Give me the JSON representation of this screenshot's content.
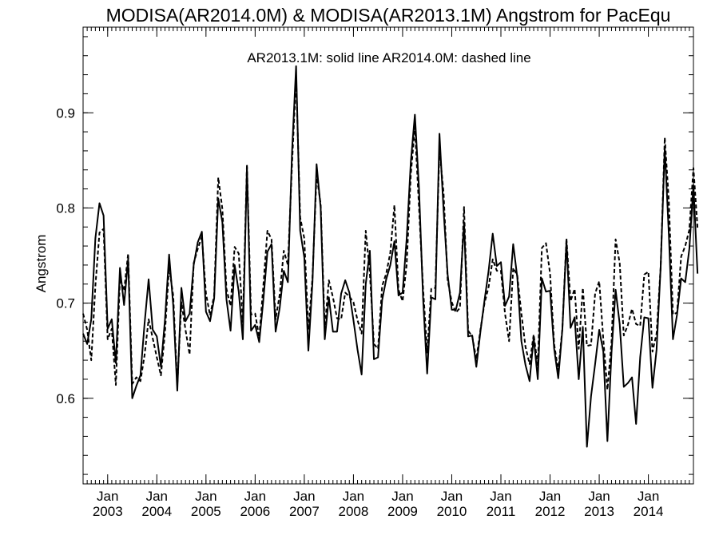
{
  "chart_data": {
    "type": "line",
    "title": "MODISA(AR2014.0M) & MODISA(AR2013.1M)  Angstrom for PacEqu",
    "annotation": "AR2013.1M: solid line   AR2014.0M: dashed line",
    "xlabel": "",
    "ylabel": "Angstrom",
    "xlim": [
      "2002-07",
      "2014-12"
    ],
    "ylim": [
      0.51,
      0.99
    ],
    "y_ticks": [
      0.6,
      0.7,
      0.8,
      0.9
    ],
    "y_tick_labels": [
      "0.6",
      "0.7",
      "0.8",
      "0.9"
    ],
    "x_ticks": [
      "2003-01",
      "2004-01",
      "2005-01",
      "2006-01",
      "2007-01",
      "2008-01",
      "2009-01",
      "2010-01",
      "2011-01",
      "2012-01",
      "2013-01",
      "2014-01"
    ],
    "x_tick_labels": [
      {
        "month": "Jan",
        "year": "2003"
      },
      {
        "month": "Jan",
        "year": "2004"
      },
      {
        "month": "Jan",
        "year": "2005"
      },
      {
        "month": "Jan",
        "year": "2006"
      },
      {
        "month": "Jan",
        "year": "2007"
      },
      {
        "month": "Jan",
        "year": "2008"
      },
      {
        "month": "Jan",
        "year": "2009"
      },
      {
        "month": "Jan",
        "year": "2010"
      },
      {
        "month": "Jan",
        "year": "2011"
      },
      {
        "month": "Jan",
        "year": "2012"
      },
      {
        "month": "Jan",
        "year": "2013"
      },
      {
        "month": "Jan",
        "year": "2014"
      }
    ],
    "x_start": "2002-07",
    "x_step": "1 month",
    "series": [
      {
        "name": "AR2013.1M",
        "style": "solid",
        "color": "#000000",
        "values": [
          0.668,
          0.657,
          0.683,
          0.768,
          0.805,
          0.792,
          0.673,
          0.683,
          0.637,
          0.737,
          0.698,
          0.746,
          0.6,
          0.613,
          0.624,
          0.678,
          0.725,
          0.672,
          0.665,
          0.633,
          0.683,
          0.751,
          0.698,
          0.608,
          0.716,
          0.681,
          0.689,
          0.74,
          0.764,
          0.775,
          0.691,
          0.681,
          0.705,
          0.81,
          0.785,
          0.704,
          0.671,
          0.74,
          0.712,
          0.662,
          0.843,
          0.671,
          0.677,
          0.659,
          0.703,
          0.754,
          0.762,
          0.67,
          0.695,
          0.734,
          0.722,
          0.858,
          0.949,
          0.776,
          0.748,
          0.65,
          0.722,
          0.846,
          0.8,
          0.662,
          0.706,
          0.67,
          0.67,
          0.71,
          0.724,
          0.711,
          0.682,
          0.651,
          0.625,
          0.72,
          0.755,
          0.641,
          0.643,
          0.703,
          0.725,
          0.74,
          0.765,
          0.708,
          0.711,
          0.768,
          0.848,
          0.898,
          0.821,
          0.705,
          0.626,
          0.706,
          0.704,
          0.878,
          0.798,
          0.73,
          0.693,
          0.693,
          0.711,
          0.785,
          0.665,
          0.666,
          0.633,
          0.67,
          0.703,
          0.734,
          0.773,
          0.739,
          0.743,
          0.697,
          0.707,
          0.762,
          0.727,
          0.66,
          0.635,
          0.618,
          0.664,
          0.62,
          0.726,
          0.712,
          0.713,
          0.652,
          0.621,
          0.672,
          0.765,
          0.674,
          0.685,
          0.62,
          0.675,
          0.549,
          0.602,
          0.636,
          0.672,
          0.649,
          0.555,
          0.648,
          0.714,
          0.678,
          0.612,
          0.616,
          0.622,
          0.573,
          0.643,
          0.685,
          0.684,
          0.611,
          0.651,
          0.738,
          0.863,
          0.772,
          0.662,
          0.688,
          0.726,
          0.722,
          0.757,
          0.824,
          0.731
        ]
      },
      {
        "name": "AR2014.0M",
        "style": "dashed",
        "color": "#000000",
        "values": [
          0.689,
          0.672,
          0.64,
          0.718,
          0.774,
          0.778,
          0.662,
          0.673,
          0.614,
          0.726,
          0.713,
          0.752,
          0.615,
          0.622,
          0.618,
          0.645,
          0.683,
          0.663,
          0.643,
          0.624,
          0.67,
          0.738,
          0.708,
          0.614,
          0.701,
          0.672,
          0.646,
          0.742,
          0.757,
          0.77,
          0.71,
          0.687,
          0.708,
          0.832,
          0.799,
          0.715,
          0.697,
          0.759,
          0.752,
          0.68,
          0.846,
          0.688,
          0.689,
          0.664,
          0.718,
          0.776,
          0.767,
          0.683,
          0.709,
          0.755,
          0.74,
          0.845,
          0.938,
          0.79,
          0.768,
          0.672,
          0.727,
          0.835,
          0.804,
          0.673,
          0.724,
          0.706,
          0.684,
          0.683,
          0.711,
          0.707,
          0.701,
          0.682,
          0.668,
          0.776,
          0.732,
          0.657,
          0.652,
          0.718,
          0.731,
          0.753,
          0.803,
          0.714,
          0.702,
          0.741,
          0.835,
          0.885,
          0.801,
          0.716,
          0.648,
          0.715,
          0.716,
          0.862,
          0.816,
          0.724,
          0.701,
          0.69,
          0.695,
          0.801,
          0.671,
          0.665,
          0.641,
          0.672,
          0.7,
          0.717,
          0.746,
          0.734,
          0.734,
          0.689,
          0.66,
          0.737,
          0.729,
          0.689,
          0.654,
          0.636,
          0.667,
          0.634,
          0.758,
          0.763,
          0.731,
          0.657,
          0.629,
          0.673,
          0.768,
          0.702,
          0.715,
          0.652,
          0.716,
          0.655,
          0.656,
          0.71,
          0.723,
          0.662,
          0.609,
          0.659,
          0.767,
          0.742,
          0.666,
          0.677,
          0.694,
          0.678,
          0.676,
          0.73,
          0.733,
          0.649,
          0.668,
          0.738,
          0.874,
          0.807,
          0.688,
          0.69,
          0.749,
          0.76,
          0.777,
          0.842,
          0.779
        ]
      }
    ]
  }
}
